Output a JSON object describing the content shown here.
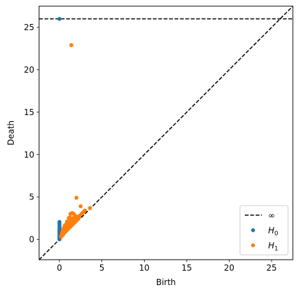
{
  "chart_data": {
    "type": "scatter",
    "title": "",
    "xlabel": "Birth",
    "ylabel": "Death",
    "xlim": [
      -2.4,
      27.5
    ],
    "ylim": [
      -2.4,
      27.5
    ],
    "xticks": [
      0,
      5,
      10,
      15,
      20,
      25
    ],
    "yticks": [
      0,
      5,
      10,
      15,
      20,
      25
    ],
    "grid": false,
    "legend_position": "lower-right",
    "infinity_value": 26,
    "reference_lines": [
      {
        "kind": "diagonal",
        "style": "dashed",
        "color": "#000000"
      },
      {
        "kind": "horizontal",
        "y": 26,
        "style": "dashed",
        "color": "#000000",
        "legend": "∞"
      }
    ],
    "series": [
      {
        "name": "H0",
        "name_base": "H",
        "name_sub": "0",
        "color": "#1f77b4",
        "points": [
          [
            0,
            0.0
          ],
          [
            0,
            0.1
          ],
          [
            0,
            0.2
          ],
          [
            0,
            0.3
          ],
          [
            0,
            0.4
          ],
          [
            0,
            0.5
          ],
          [
            0,
            0.6
          ],
          [
            0,
            0.7
          ],
          [
            0,
            0.8
          ],
          [
            0,
            0.9
          ],
          [
            0,
            1.0
          ],
          [
            0,
            1.1
          ],
          [
            0,
            1.2
          ],
          [
            0,
            1.3
          ],
          [
            0,
            1.45
          ],
          [
            0,
            1.6
          ],
          [
            0,
            1.75
          ],
          [
            0,
            1.9
          ],
          [
            0,
            2.05
          ],
          [
            0,
            26
          ]
        ]
      },
      {
        "name": "H1",
        "name_base": "H",
        "name_sub": "1",
        "color": "#ff7f0e",
        "points": [
          [
            1.4,
            22.9
          ],
          [
            2.0,
            4.9
          ],
          [
            2.5,
            3.9
          ],
          [
            3.6,
            3.7
          ],
          [
            1.5,
            3.1
          ],
          [
            1.3,
            3.0
          ],
          [
            1.7,
            3.0
          ],
          [
            1.1,
            2.5
          ],
          [
            1.3,
            2.4
          ],
          [
            1.6,
            2.5
          ],
          [
            2.0,
            2.7
          ],
          [
            2.3,
            2.6
          ],
          [
            2.8,
            3.2
          ],
          [
            3.0,
            3.4
          ],
          [
            0.6,
            1.6
          ],
          [
            0.8,
            1.8
          ],
          [
            1.0,
            1.9
          ],
          [
            1.2,
            2.0
          ],
          [
            0.4,
            1.1
          ],
          [
            0.5,
            1.3
          ],
          [
            0.7,
            1.4
          ],
          [
            0.9,
            1.6
          ],
          [
            1.1,
            1.7
          ],
          [
            0.3,
            0.8
          ],
          [
            0.5,
            0.9
          ],
          [
            0.7,
            1.1
          ],
          [
            0.9,
            1.3
          ],
          [
            1.3,
            1.7
          ],
          [
            1.5,
            1.9
          ],
          [
            1.7,
            2.1
          ],
          [
            1.9,
            2.3
          ],
          [
            2.1,
            2.5
          ],
          [
            2.4,
            2.8
          ],
          [
            2.6,
            3.0
          ],
          [
            0.3,
            0.6
          ],
          [
            0.5,
            0.7
          ],
          [
            0.8,
            1.0
          ],
          [
            1.0,
            1.2
          ],
          [
            1.2,
            1.4
          ],
          [
            1.4,
            1.6
          ],
          [
            1.6,
            1.8
          ],
          [
            1.8,
            2.0
          ],
          [
            2.0,
            2.2
          ],
          [
            2.2,
            2.4
          ],
          [
            0.2,
            0.4
          ],
          [
            0.4,
            0.5
          ],
          [
            0.6,
            0.8
          ],
          [
            0.2,
            0.3
          ],
          [
            1.5,
            2.3
          ],
          [
            1.8,
            2.6
          ],
          [
            0.9,
            2.1
          ],
          [
            1.2,
            2.6
          ]
        ]
      }
    ]
  }
}
